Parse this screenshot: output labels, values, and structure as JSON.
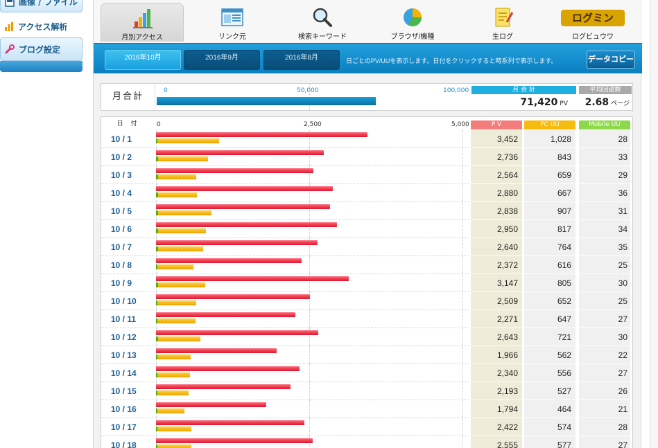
{
  "sidebar": {
    "items": [
      {
        "label": "画像 / ファイル",
        "icon": "image-file-icon"
      },
      {
        "label": "アクセス解析",
        "icon": "bar-chart-icon"
      },
      {
        "label": "ブログ設定",
        "icon": "wrench-icon"
      }
    ]
  },
  "tabs": [
    {
      "label": "月別アクセス",
      "icon": "bar-chart-icon",
      "active": true
    },
    {
      "label": "リンク元",
      "icon": "window-icon",
      "active": false
    },
    {
      "label": "検索キーワード",
      "icon": "magnifier-icon",
      "active": false
    },
    {
      "label": "ブラウザ/機種",
      "icon": "pie-chart-icon",
      "active": false
    },
    {
      "label": "生ログ",
      "icon": "notepad-icon",
      "active": false
    },
    {
      "label": "ログビュウワ",
      "logo": "ログミン"
    }
  ],
  "months": [
    {
      "label": "2016年10月",
      "active": true
    },
    {
      "label": "2016年9月",
      "active": false
    },
    {
      "label": "2016年8月",
      "active": false
    }
  ],
  "month_note": "日ごとのPV/UUを表示します。日付をクリックすると時系列で表示します。",
  "copy_button": "データコピー",
  "summary": {
    "label": "月合計",
    "axis": [
      "0",
      "50,000",
      "100,000"
    ],
    "total_header": "月 合 計",
    "total_value": "71,420",
    "total_unit": "PV",
    "total_pv": 71420,
    "axis_max": 100000,
    "avg_header": "平均回遊数",
    "avg_value": "2.68",
    "avg_unit": "ページ"
  },
  "daily": {
    "date_header": "日 付",
    "axis": [
      "0",
      "2,500",
      "5,000"
    ],
    "axis_max": 5000,
    "columns": [
      "P V",
      "PC UU",
      "Mobile UU"
    ],
    "colors": {
      "pv": "#e0142c",
      "pc_uu": "#f2a300",
      "mobile_uu": "#49b41c"
    }
  },
  "chart_data": {
    "type": "bar",
    "title": "",
    "categories": [
      "10 / 1",
      "10 / 2",
      "10 / 3",
      "10 / 4",
      "10 / 5",
      "10 / 6",
      "10 / 7",
      "10 / 8",
      "10 / 9",
      "10 / 10",
      "10 / 11",
      "10 / 12",
      "10 / 13",
      "10 / 14",
      "10 / 15",
      "10 / 16",
      "10 / 17",
      "10 / 18"
    ],
    "xlim": [
      0,
      5000
    ],
    "series": [
      {
        "name": "P V",
        "values": [
          3452,
          2736,
          2564,
          2880,
          2838,
          2950,
          2640,
          2372,
          3147,
          2509,
          2271,
          2643,
          1966,
          2340,
          2193,
          1794,
          2422,
          2555
        ]
      },
      {
        "name": "PC UU",
        "values": [
          1028,
          843,
          659,
          667,
          907,
          817,
          764,
          616,
          805,
          652,
          647,
          721,
          562,
          556,
          527,
          464,
          574,
          577
        ]
      },
      {
        "name": "Mobile UU",
        "values": [
          28,
          33,
          29,
          36,
          31,
          34,
          35,
          25,
          30,
          25,
          27,
          30,
          22,
          27,
          26,
          21,
          28,
          27
        ]
      }
    ]
  }
}
